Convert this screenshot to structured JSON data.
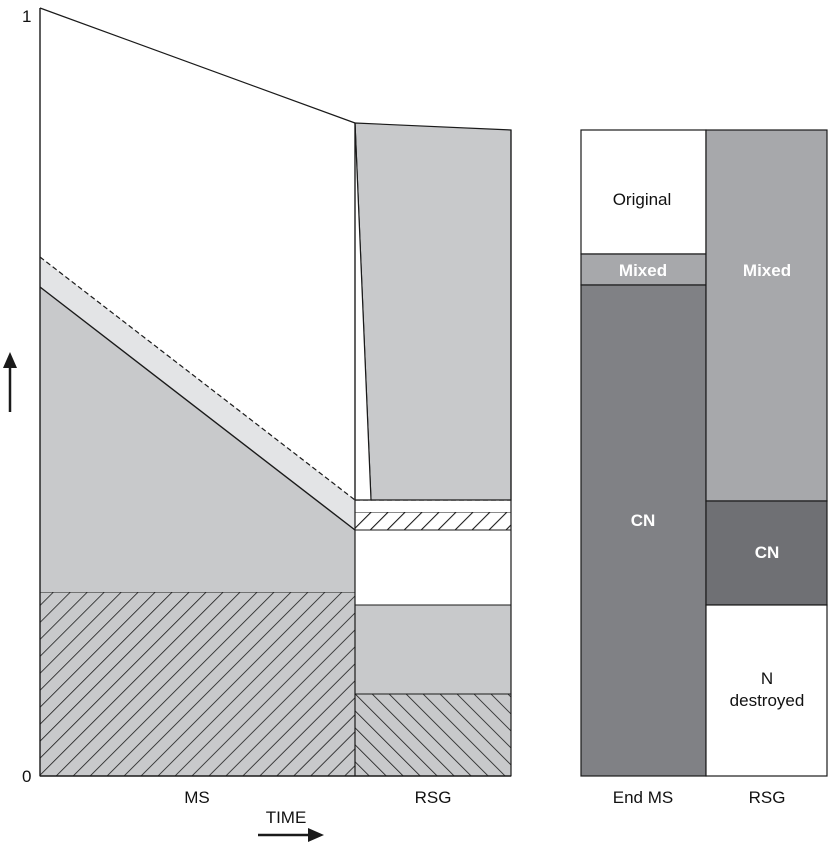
{
  "axis": {
    "y_top_label": "1",
    "y_bottom_label": "0",
    "time_label": "TIME"
  },
  "left_panel": {
    "labels": {
      "ms": "MS",
      "rsg": "RSG"
    }
  },
  "right_panel": {
    "labels": {
      "end_ms": "End MS",
      "rsg": "RSG"
    },
    "end_ms_blocks": {
      "original": "Original",
      "mixed": "Mixed",
      "cn": "CN"
    },
    "rsg_blocks": {
      "mixed": "Mixed",
      "cn": "CN",
      "n_destroyed_line1": "N",
      "n_destroyed_line2": "destroyed"
    }
  },
  "colors": {
    "light_gray": "#c8c9cb",
    "lighter_gray": "#e3e4e6",
    "mid_gray": "#a7a8ab",
    "dark_gray": "#808185",
    "darker_gray": "#6f7074",
    "line": "#1a1a1a"
  }
}
